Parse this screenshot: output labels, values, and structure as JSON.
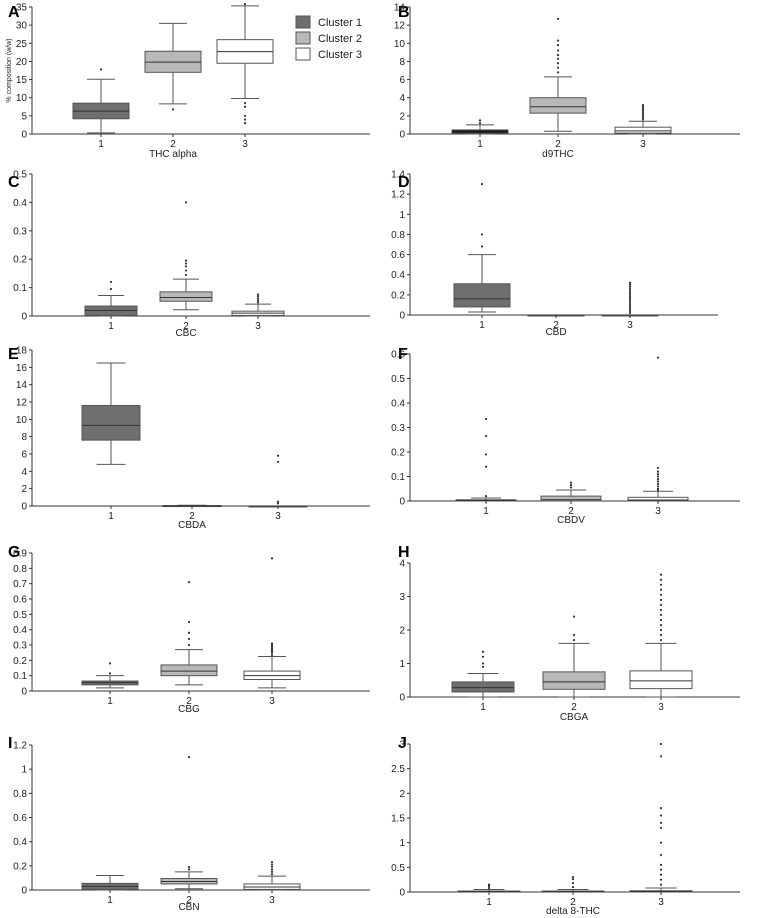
{
  "colors": {
    "cluster1": "#6f6f6f",
    "cluster2": "#b8b8b8",
    "cluster3": "#ffffff",
    "cluster1_dark": "#111111",
    "stroke": "#555555"
  },
  "legend": {
    "entries": [
      {
        "label": "Cluster 1",
        "color": "#6f6f6f"
      },
      {
        "label": "Cluster 2",
        "color": "#b8b8b8"
      },
      {
        "label": "Cluster 3",
        "color": "#ffffff"
      }
    ]
  },
  "chart_data": [
    {
      "letter": "A",
      "type": "box",
      "xlabel": "THC alpha",
      "ylabel": "% composition (w/w)",
      "ylim": [
        0,
        35
      ],
      "yticks": [
        0,
        5,
        10,
        15,
        20,
        25,
        30,
        35
      ],
      "yticklabels": [
        "0",
        "5",
        "10",
        "15",
        "20",
        "25",
        "30",
        "35"
      ],
      "categories": [
        "1",
        "2",
        "3"
      ],
      "boxes": [
        {
          "category": "1",
          "whislo": 0.3,
          "q1": 4.2,
          "med": 6.3,
          "q3": 8.5,
          "whishi": 15.1,
          "fliers": [
            17.8
          ],
          "fill": "#6f6f6f"
        },
        {
          "category": "2",
          "whislo": 8.3,
          "q1": 17.0,
          "med": 19.8,
          "q3": 22.8,
          "whishi": 30.5,
          "fliers": [
            6.8
          ],
          "fill": "#b8b8b8"
        },
        {
          "category": "3",
          "whislo": 9.8,
          "q1": 19.5,
          "med": 22.7,
          "q3": 26.0,
          "whishi": 35.3,
          "fliers": [
            8.5,
            7.5,
            5.0,
            4.0,
            3.0,
            35.8
          ],
          "fill": "#ffffff"
        }
      ]
    },
    {
      "letter": "B",
      "type": "box",
      "xlabel": "d9THC",
      "ylabel": "",
      "ylim": [
        0,
        14
      ],
      "yticks": [
        0,
        2,
        4,
        6,
        8,
        10,
        12,
        14
      ],
      "yticklabels": [
        "0",
        "2",
        "4",
        "6",
        "8",
        "10",
        "12",
        "14"
      ],
      "categories": [
        "1",
        "2",
        "3"
      ],
      "boxes": [
        {
          "category": "1",
          "whislo": 0.0,
          "q1": 0.05,
          "med": 0.2,
          "q3": 0.45,
          "whishi": 1.0,
          "fliers": [
            1.2,
            1.5
          ],
          "fill": "#111111"
        },
        {
          "category": "2",
          "whislo": 0.3,
          "q1": 2.3,
          "med": 3.0,
          "q3": 4.0,
          "whishi": 6.3,
          "fliers": [
            6.8,
            7.3,
            7.8,
            8.3,
            8.7,
            9.2,
            9.8,
            10.3,
            12.7
          ],
          "fill": "#b8b8b8"
        },
        {
          "category": "3",
          "whislo": 0.0,
          "q1": 0.1,
          "med": 0.35,
          "q3": 0.75,
          "whishi": 1.4,
          "fliers": [
            1.6,
            1.8,
            2.0,
            2.2,
            2.4,
            2.6,
            2.8,
            3.0,
            3.2
          ],
          "fill": "#ffffff"
        }
      ]
    },
    {
      "letter": "C",
      "type": "box",
      "xlabel": "CBC",
      "ylabel": "",
      "ylim": [
        0,
        0.5
      ],
      "yticks": [
        0,
        0.1,
        0.2,
        0.3,
        0.4,
        0.5
      ],
      "yticklabels": [
        "0",
        "0.1",
        "0.2",
        "0.3",
        "0.4",
        "0.5"
      ],
      "categories": [
        "1",
        "2",
        "3"
      ],
      "boxes": [
        {
          "category": "1",
          "whislo": 0.0,
          "q1": 0.002,
          "med": 0.02,
          "q3": 0.035,
          "whishi": 0.072,
          "fliers": [
            0.095,
            0.12
          ],
          "fill": "#6f6f6f"
        },
        {
          "category": "2",
          "whislo": 0.022,
          "q1": 0.052,
          "med": 0.065,
          "q3": 0.085,
          "whishi": 0.13,
          "fliers": [
            0.145,
            0.16,
            0.175,
            0.185,
            0.195,
            0.4
          ],
          "fill": "#b8b8b8"
        },
        {
          "category": "3",
          "whislo": 0.0,
          "q1": 0.002,
          "med": 0.01,
          "q3": 0.017,
          "whishi": 0.042,
          "fliers": [
            0.048,
            0.055,
            0.062,
            0.07,
            0.076
          ],
          "fill": "#ffffff"
        }
      ]
    },
    {
      "letter": "D",
      "type": "box",
      "xlabel": "CBD",
      "ylabel": "",
      "ylim": [
        0,
        1.4
      ],
      "yticks": [
        0,
        0.2,
        0.4,
        0.6,
        0.8,
        1.0,
        1.2,
        1.4
      ],
      "yticklabels": [
        "0",
        "0.2",
        "0.4",
        "0.6",
        "0.8",
        "1",
        "1.2",
        "1.4"
      ],
      "categories": [
        "1",
        "2",
        "3"
      ],
      "boxes": [
        {
          "category": "1",
          "whislo": 0.03,
          "q1": 0.08,
          "med": 0.16,
          "q3": 0.31,
          "whishi": 0.6,
          "fliers": [
            0.68,
            0.8,
            1.3
          ],
          "fill": "#6f6f6f"
        },
        {
          "category": "2",
          "whislo": 0.0,
          "q1": 0.0,
          "med": 0.0,
          "q3": 0.0,
          "whishi": 0.0,
          "fliers": [],
          "fill": "#b8b8b8"
        },
        {
          "category": "3",
          "whislo": 0.0,
          "q1": 0.0,
          "med": 0.0,
          "q3": 0.0,
          "whishi": 0.0,
          "fliers": [
            0.02,
            0.04,
            0.06,
            0.08,
            0.1,
            0.12,
            0.14,
            0.16,
            0.18,
            0.2,
            0.22,
            0.24,
            0.26,
            0.28,
            0.3,
            0.32
          ],
          "fill": "#ffffff"
        }
      ]
    },
    {
      "letter": "E",
      "type": "box",
      "xlabel": "CBDA",
      "ylabel": "",
      "ylim": [
        0,
        18
      ],
      "yticks": [
        0,
        2,
        4,
        6,
        8,
        10,
        12,
        14,
        16,
        18
      ],
      "yticklabels": [
        "0",
        "2",
        "4",
        "6",
        "8",
        "10",
        "12",
        "14",
        "16",
        "18"
      ],
      "categories": [
        "1",
        "2",
        "3"
      ],
      "boxes": [
        {
          "category": "1",
          "whislo": 4.8,
          "q1": 7.6,
          "med": 9.3,
          "q3": 11.6,
          "whishi": 16.5,
          "fliers": [],
          "fill": "#6f6f6f"
        },
        {
          "category": "2",
          "whislo": 0.0,
          "q1": 0.0,
          "med": 0.02,
          "q3": 0.05,
          "whishi": 0.08,
          "fliers": [],
          "fill": "#b8b8b8"
        },
        {
          "category": "3",
          "whislo": 0.0,
          "q1": 0.0,
          "med": 0.0,
          "q3": 0.0,
          "whishi": 0.0,
          "fliers": [
            0.3,
            0.5,
            5.1,
            5.8
          ],
          "fill": "#ffffff"
        }
      ]
    },
    {
      "letter": "F",
      "type": "box",
      "xlabel": "CBDV",
      "ylabel": "",
      "ylim": [
        0,
        0.6
      ],
      "yticks": [
        0,
        0.1,
        0.2,
        0.3,
        0.4,
        0.5,
        0.6
      ],
      "yticklabels": [
        "0",
        "0.1",
        "0.2",
        "0.3",
        "0.4",
        "0.5",
        "0.6"
      ],
      "categories": [
        "1",
        "2",
        "3"
      ],
      "boxes": [
        {
          "category": "1",
          "whislo": 0.0,
          "q1": 0.0,
          "med": 0.002,
          "q3": 0.005,
          "whishi": 0.012,
          "fliers": [
            0.02,
            0.14,
            0.19,
            0.265,
            0.335
          ],
          "fill": "#6f6f6f"
        },
        {
          "category": "2",
          "whislo": 0.0,
          "q1": 0.0,
          "med": 0.005,
          "q3": 0.02,
          "whishi": 0.045,
          "fliers": [
            0.055,
            0.065,
            0.075
          ],
          "fill": "#b8b8b8"
        },
        {
          "category": "3",
          "whislo": 0.0,
          "q1": 0.0,
          "med": 0.004,
          "q3": 0.015,
          "whishi": 0.04,
          "fliers": [
            0.045,
            0.05,
            0.06,
            0.07,
            0.08,
            0.09,
            0.1,
            0.11,
            0.12,
            0.135,
            0.585
          ],
          "fill": "#ffffff"
        }
      ]
    },
    {
      "letter": "G",
      "type": "box",
      "xlabel": "CBG",
      "ylabel": "",
      "ylim": [
        0,
        0.9
      ],
      "yticks": [
        0,
        0.1,
        0.2,
        0.3,
        0.4,
        0.5,
        0.6,
        0.7,
        0.8,
        0.9
      ],
      "yticklabels": [
        "0",
        "0.1",
        "0.2",
        "0.3",
        "0.4",
        "0.5",
        "0.6",
        "0.7",
        "0.8",
        "0.9"
      ],
      "categories": [
        "1",
        "2",
        "3"
      ],
      "boxes": [
        {
          "category": "1",
          "whislo": 0.02,
          "q1": 0.04,
          "med": 0.055,
          "q3": 0.065,
          "whishi": 0.1,
          "fliers": [
            0.115,
            0.18
          ],
          "fill": "#6f6f6f"
        },
        {
          "category": "2",
          "whislo": 0.04,
          "q1": 0.1,
          "med": 0.13,
          "q3": 0.17,
          "whishi": 0.27,
          "fliers": [
            0.3,
            0.34,
            0.38,
            0.45,
            0.71
          ],
          "fill": "#b8b8b8"
        },
        {
          "category": "3",
          "whislo": 0.02,
          "q1": 0.075,
          "med": 0.1,
          "q3": 0.13,
          "whishi": 0.225,
          "fliers": [
            0.235,
            0.25,
            0.26,
            0.27,
            0.28,
            0.29,
            0.3,
            0.31,
            0.865
          ],
          "fill": "#ffffff"
        }
      ]
    },
    {
      "letter": "H",
      "type": "box",
      "xlabel": "CBGA",
      "ylabel": "",
      "ylim": [
        0,
        4
      ],
      "yticks": [
        0,
        1,
        2,
        3,
        4
      ],
      "yticklabels": [
        "0",
        "1",
        "2",
        "3",
        "4"
      ],
      "categories": [
        "1",
        "2",
        "3"
      ],
      "boxes": [
        {
          "category": "1",
          "whislo": 0.0,
          "q1": 0.15,
          "med": 0.28,
          "q3": 0.45,
          "whishi": 0.7,
          "fliers": [
            0.9,
            1.0,
            1.2,
            1.35
          ],
          "fill": "#6f6f6f"
        },
        {
          "category": "2",
          "whislo": 0.0,
          "q1": 0.23,
          "med": 0.45,
          "q3": 0.75,
          "whishi": 1.6,
          "fliers": [
            1.7,
            1.85,
            2.4
          ],
          "fill": "#b8b8b8"
        },
        {
          "category": "3",
          "whislo": 0.0,
          "q1": 0.25,
          "med": 0.48,
          "q3": 0.78,
          "whishi": 1.6,
          "fliers": [
            1.7,
            1.85,
            2.0,
            2.15,
            2.3,
            2.45,
            2.6,
            2.75,
            2.9,
            3.05,
            3.2,
            3.35,
            3.5,
            3.65
          ],
          "fill": "#ffffff"
        }
      ]
    },
    {
      "letter": "I",
      "type": "box",
      "xlabel": "CBN",
      "ylabel": "",
      "ylim": [
        0,
        1.2
      ],
      "yticks": [
        0,
        0.2,
        0.4,
        0.6,
        0.8,
        1.0,
        1.2
      ],
      "yticklabels": [
        "0",
        "0.2",
        "0.4",
        "0.6",
        "0.8",
        "1",
        "1.2"
      ],
      "categories": [
        "1",
        "2",
        "3"
      ],
      "boxes": [
        {
          "category": "1",
          "whislo": 0.0,
          "q1": 0.005,
          "med": 0.03,
          "q3": 0.055,
          "whishi": 0.12,
          "fliers": [],
          "fill": "#6f6f6f"
        },
        {
          "category": "2",
          "whislo": 0.01,
          "q1": 0.05,
          "med": 0.07,
          "q3": 0.095,
          "whishi": 0.15,
          "fliers": [
            0.17,
            0.19,
            1.1
          ],
          "fill": "#b8b8b8"
        },
        {
          "category": "3",
          "whislo": 0.0,
          "q1": 0.005,
          "med": 0.025,
          "q3": 0.05,
          "whishi": 0.115,
          "fliers": [
            0.13,
            0.15,
            0.17,
            0.19,
            0.21,
            0.23
          ],
          "fill": "#ffffff"
        }
      ]
    },
    {
      "letter": "J",
      "type": "box",
      "xlabel": "delta 8-THC",
      "ylabel": "",
      "ylim": [
        0,
        3
      ],
      "yticks": [
        0,
        0.5,
        1,
        1.5,
        2,
        2.5,
        3
      ],
      "yticklabels": [
        "0",
        "0.5",
        "1",
        "1.5",
        "2",
        "2.5",
        "3"
      ],
      "categories": [
        "1",
        "2",
        "3"
      ],
      "boxes": [
        {
          "category": "1",
          "whislo": 0.0,
          "q1": 0.0,
          "med": 0.005,
          "q3": 0.02,
          "whishi": 0.05,
          "fliers": [
            0.08,
            0.12,
            0.15
          ],
          "fill": "#6f6f6f"
        },
        {
          "category": "2",
          "whislo": 0.0,
          "q1": 0.0,
          "med": 0.005,
          "q3": 0.02,
          "whishi": 0.05,
          "fliers": [
            0.1,
            0.18,
            0.26,
            0.3
          ],
          "fill": "#b8b8b8"
        },
        {
          "category": "3",
          "whislo": 0.0,
          "q1": 0.0,
          "med": 0.01,
          "q3": 0.025,
          "whishi": 0.08,
          "fliers": [
            0.15,
            0.25,
            0.35,
            0.45,
            0.55,
            0.75,
            1.0,
            1.3,
            1.4,
            1.55,
            1.7,
            2.75,
            3.0
          ],
          "fill": "#ffffff"
        }
      ]
    }
  ]
}
